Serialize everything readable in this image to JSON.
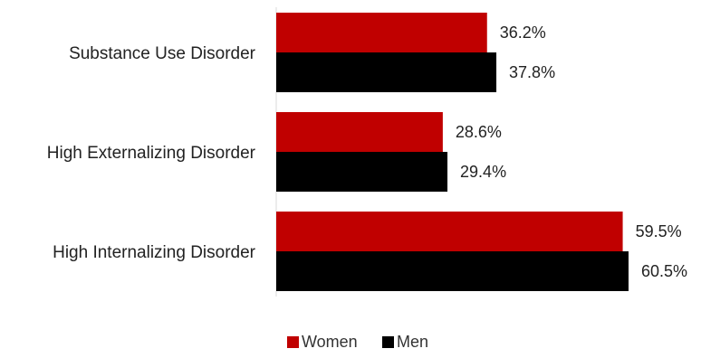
{
  "chart_data": {
    "type": "bar",
    "orientation": "horizontal",
    "categories": [
      "Substance Use Disorder",
      "High Externalizing Disorder",
      "High Internalizing Disorder"
    ],
    "series": [
      {
        "name": "Women",
        "color": "#c00000",
        "values": [
          36.2,
          28.6,
          59.5
        ],
        "labels": [
          "36.2%",
          "28.6%",
          "59.5%"
        ]
      },
      {
        "name": "Men",
        "color": "#000000",
        "values": [
          37.8,
          29.4,
          60.5
        ],
        "labels": [
          "37.8%",
          "29.4%",
          "60.5%"
        ]
      }
    ],
    "title": "",
    "xlabel": "",
    "ylabel": "",
    "xlim": [
      0,
      60.5
    ],
    "grid": false,
    "legend": "bottom"
  }
}
